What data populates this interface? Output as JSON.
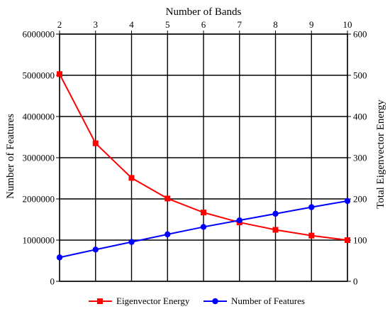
{
  "chart_data": {
    "type": "line",
    "x": [
      2,
      3,
      4,
      5,
      6,
      7,
      8,
      9,
      10
    ],
    "xlabel": "Number of Bands",
    "xlim": [
      2,
      10
    ],
    "ylabel": "Number of Features",
    "ylim": [
      0,
      6000000
    ],
    "y_ticks": [
      "0",
      "1000000",
      "2000000",
      "3000000",
      "4000000",
      "5000000",
      "6000000"
    ],
    "y2label": "Total Eigenvector Energy",
    "y2lim": [
      0,
      600
    ],
    "y2_ticks": [
      "0",
      "100",
      "200",
      "300",
      "400",
      "500",
      "600"
    ],
    "x_ticks": [
      "2",
      "3",
      "4",
      "5",
      "6",
      "7",
      "8",
      "9",
      "10"
    ],
    "grid": true,
    "legend_position": "bottom",
    "series": [
      {
        "name": "Eigenvector Energy",
        "axis": "right",
        "marker": "square",
        "color": "#ff0000",
        "values": [
          503,
          335,
          251,
          201,
          167,
          143,
          125,
          111,
          100
        ]
      },
      {
        "name": "Number of Features",
        "axis": "left",
        "marker": "circle",
        "color": "#0000ff",
        "values": [
          580000,
          770000,
          955000,
          1140000,
          1320000,
          1480000,
          1640000,
          1800000,
          1950000
        ]
      }
    ]
  }
}
